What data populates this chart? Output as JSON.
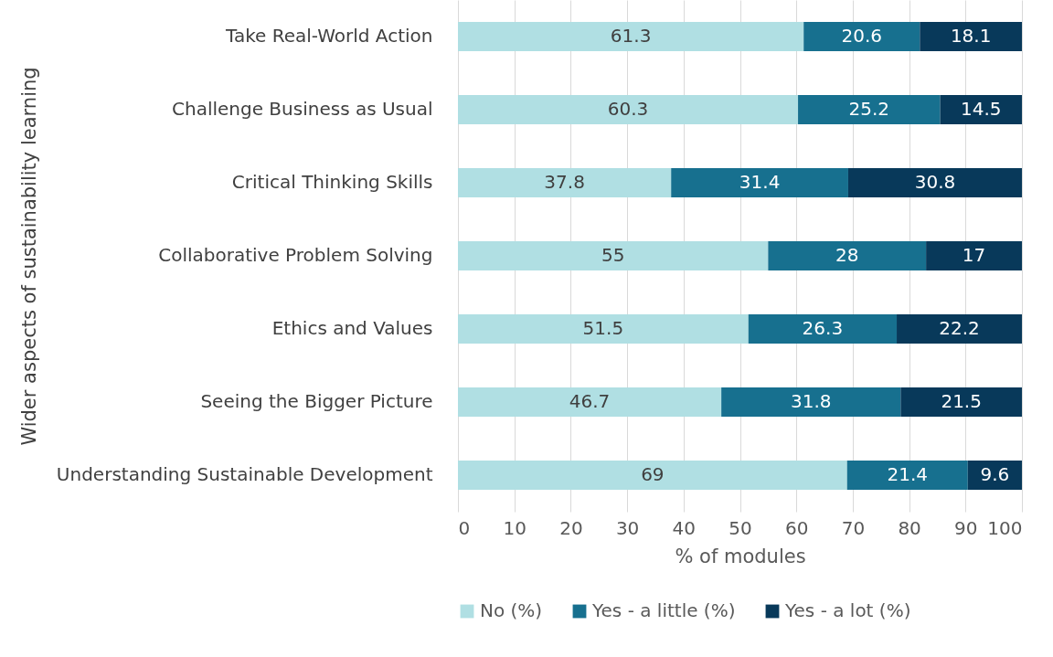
{
  "chart_data": {
    "type": "bar",
    "orientation": "horizontal",
    "stacked": true,
    "xlabel": "% of modules",
    "ylabel": "Wider aspects of sustainability learning",
    "categories": [
      "Take Real-World Action",
      "Challenge Business as Usual",
      "Critical Thinking Skills",
      "Collaborative Problem Solving",
      "Ethics and Values",
      "Seeing the Bigger Picture",
      "Understanding Sustainable Development"
    ],
    "series": [
      {
        "name": "No (%)",
        "color": "#b0dfe3",
        "values": [
          61.3,
          60.3,
          37.8,
          55,
          51.5,
          46.7,
          69
        ]
      },
      {
        "name": "Yes - a little (%)",
        "color": "#17708f",
        "values": [
          20.6,
          25.2,
          31.4,
          28,
          26.3,
          31.8,
          21.4
        ]
      },
      {
        "name": "Yes - a lot (%)",
        "color": "#08395a",
        "values": [
          18.1,
          14.5,
          30.8,
          17,
          22.2,
          21.5,
          9.6
        ]
      }
    ],
    "xlim": [
      0,
      100
    ],
    "xticks": [
      0,
      10,
      20,
      30,
      40,
      50,
      60,
      70,
      80,
      90,
      100
    ],
    "grid": "x",
    "legend": "bottom",
    "data_labels": true
  }
}
